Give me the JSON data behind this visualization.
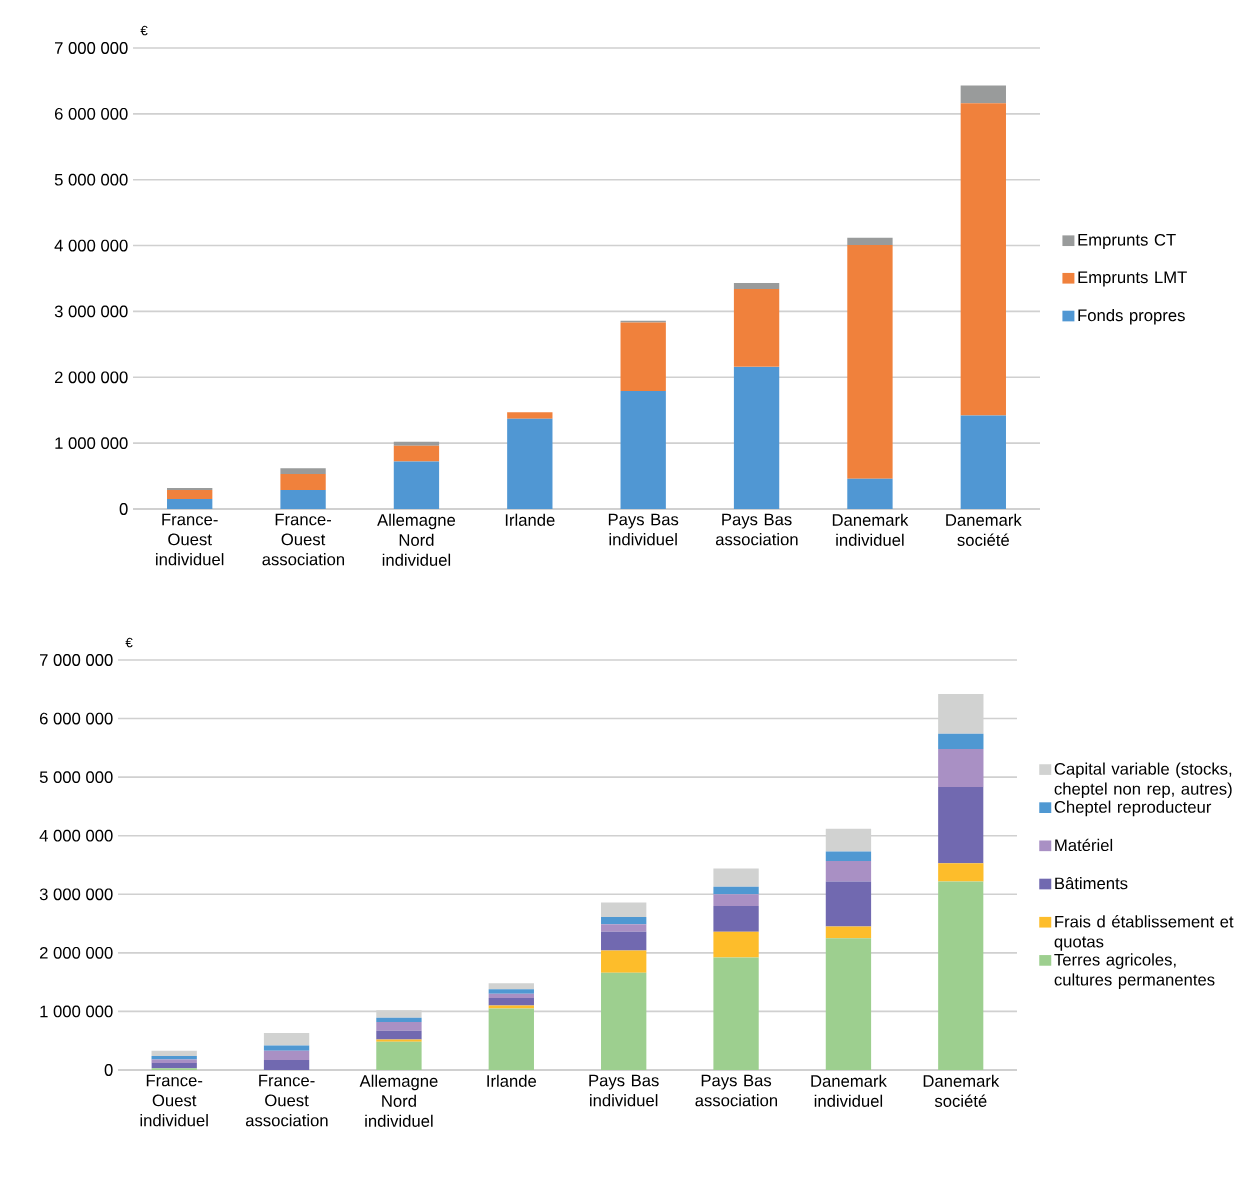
{
  "chart_data": [
    {
      "type": "bar",
      "stacked": true,
      "ylabel": "€",
      "categories": [
        "France-Ouest individuel",
        "France-Ouest association",
        "Allemagne Nord individuel",
        "Irlande",
        "Pays Bas individuel",
        "Pays Bas association",
        "Danemark individuel",
        "Danemark société"
      ],
      "series": [
        {
          "name": "Fonds propres",
          "color": "#5097d3",
          "values": [
            150000,
            290000,
            720000,
            1370000,
            1790000,
            2160000,
            460000,
            1420000
          ]
        },
        {
          "name": "Emprunts LMT",
          "color": "#f0813c",
          "values": [
            140000,
            240000,
            240000,
            100000,
            1040000,
            1180000,
            3550000,
            4740000
          ]
        },
        {
          "name": "Emprunts CT",
          "color": "#999b9b",
          "values": [
            30000,
            90000,
            60000,
            0,
            30000,
            90000,
            110000,
            270000
          ]
        }
      ],
      "ylim": [
        0,
        7000000
      ],
      "yticks": [
        0,
        {
          "value": 1000000,
          "label": "1 000 000"
        },
        {
          "value": 2000000,
          "label": "2 000 000"
        },
        {
          "value": 3000000,
          "label": "3 000 000"
        },
        {
          "value": 4000000,
          "label": "4 000 000"
        },
        {
          "value": 5000000,
          "label": "5 000 000"
        },
        {
          "value": 6000000,
          "label": "6 000 000"
        },
        {
          "value": 7000000,
          "label": "7 000 000"
        }
      ],
      "grid": "y",
      "legend": "right"
    },
    {
      "type": "bar",
      "stacked": true,
      "ylabel": "€",
      "categories": [
        "France-Ouest individuel",
        "France-Ouest association",
        "Allemagne Nord individuel",
        "Irlande",
        "Pays Bas individuel",
        "Pays Bas association",
        "Danemark individuel",
        "Danemark société"
      ],
      "series": [
        {
          "name": "Terres agricoles, cultures permanentes",
          "color": "#9dcf8f",
          "values": [
            30000,
            0,
            480000,
            1050000,
            1660000,
            1920000,
            2250000,
            3220000
          ]
        },
        {
          "name": "Frais d établissement et quotas",
          "color": "#fdbd2b",
          "values": [
            0,
            0,
            40000,
            50000,
            380000,
            440000,
            200000,
            310000
          ]
        },
        {
          "name": "Bâtiments",
          "color": "#7169b0",
          "values": [
            90000,
            170000,
            150000,
            130000,
            320000,
            440000,
            770000,
            1300000
          ]
        },
        {
          "name": "Matériel",
          "color": "#a990c4",
          "values": [
            60000,
            160000,
            150000,
            70000,
            130000,
            200000,
            350000,
            650000
          ]
        },
        {
          "name": "Cheptel reproducteur",
          "color": "#4f98d2",
          "values": [
            60000,
            90000,
            70000,
            80000,
            120000,
            130000,
            160000,
            260000
          ]
        },
        {
          "name": "Capital variable (stocks, cheptel non rep, autres)",
          "color": "#d1d2d1",
          "values": [
            90000,
            210000,
            130000,
            100000,
            250000,
            310000,
            390000,
            680000
          ]
        }
      ],
      "ylim": [
        0,
        7000000
      ],
      "yticks": [
        0,
        {
          "value": 1000000,
          "label": "1 000 000"
        },
        {
          "value": 2000000,
          "label": "2 000 000"
        },
        {
          "value": 3000000,
          "label": "3 000 000"
        },
        {
          "value": 4000000,
          "label": "4 000 000"
        },
        {
          "value": 5000000,
          "label": "5 000 000"
        },
        {
          "value": 6000000,
          "label": "6 000 000"
        },
        {
          "value": 7000000,
          "label": "7 000 000"
        }
      ],
      "grid": "y",
      "legend": "right"
    }
  ]
}
